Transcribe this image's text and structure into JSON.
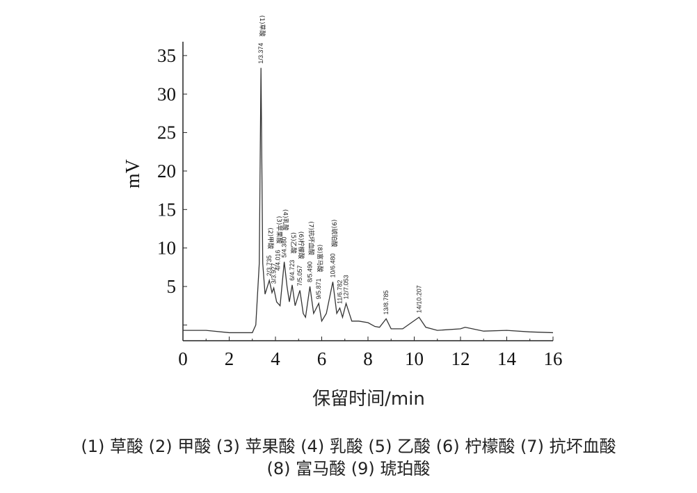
{
  "chart_data": {
    "type": "line",
    "title": "",
    "xlabel": "保留时间/min",
    "ylabel": "mV",
    "xlim": [
      0,
      16
    ],
    "ylim": [
      -1.5,
      37
    ],
    "xticks": [
      "0",
      "2",
      "4",
      "6",
      "8",
      "10",
      "12",
      "14",
      "16"
    ],
    "yticks": [
      "5",
      "10",
      "15",
      "20",
      "25",
      "30",
      "35"
    ],
    "series": [
      {
        "name": "chromatogram",
        "x": [
          0,
          1,
          2,
          3,
          3.15,
          3.3,
          3.374,
          3.45,
          3.55,
          3.735,
          3.85,
          3.927,
          4.05,
          4.2,
          4.38,
          4.5,
          4.6,
          4.723,
          4.85,
          5.057,
          5.2,
          5.3,
          5.49,
          5.65,
          5.871,
          6.0,
          6.2,
          6.48,
          6.65,
          6.782,
          6.9,
          7.053,
          7.3,
          7.6,
          8.0,
          8.3,
          8.5,
          8.785,
          9.0,
          9.5,
          10.207,
          10.5,
          11,
          12,
          12.2,
          13,
          14,
          15,
          16
        ],
        "y": [
          -0.7,
          -0.7,
          -1.0,
          -1.0,
          0,
          8,
          33.4,
          8,
          4,
          5.8,
          4.2,
          4.8,
          3,
          2.5,
          8.2,
          5,
          3,
          5.2,
          2.5,
          4.5,
          1.5,
          1.0,
          5.0,
          1.5,
          2.8,
          0.5,
          1.5,
          5.6,
          1.5,
          2.2,
          1.0,
          2.8,
          0.5,
          0.5,
          0.3,
          -0.2,
          -0.3,
          0.8,
          -0.5,
          -0.5,
          1.0,
          -0.3,
          -0.7,
          -0.5,
          -0.3,
          -0.8,
          -0.7,
          -0.9,
          -1.0
        ]
      }
    ],
    "peaks": [
      {
        "label": "1/3.374",
        "x": 3.374,
        "y": 33.4,
        "name": "(1)草酸"
      },
      {
        "label": "2/3.735",
        "x": 3.735,
        "y": 5.8,
        "name": "(2)甲酸"
      },
      {
        "label": "3/3.927",
        "x": 3.927,
        "y": 4.8,
        "name": ""
      },
      {
        "label": "4/4.016",
        "x": 4.1,
        "y": 6.5,
        "name": "(3)苹果酸"
      },
      {
        "label": "5/4.380",
        "x": 4.38,
        "y": 8.2,
        "name": "(4)乳酸"
      },
      {
        "label": "6/4.723",
        "x": 4.723,
        "y": 5.2,
        "name": "(5)乙酸"
      },
      {
        "label": "7/5.057",
        "x": 5.057,
        "y": 4.5,
        "name": "(6)柠檬酸"
      },
      {
        "label": "8/5.490",
        "x": 5.49,
        "y": 5.0,
        "name": "(7)抗坏血酸"
      },
      {
        "label": "9/5.871",
        "x": 5.871,
        "y": 2.8,
        "name": "(8)富马酸"
      },
      {
        "label": "10/6.480",
        "x": 6.48,
        "y": 5.6,
        "name": "(9)琥珀酸"
      },
      {
        "label": "11/6.782",
        "x": 6.782,
        "y": 2.2,
        "name": ""
      },
      {
        "label": "12/7.053",
        "x": 7.053,
        "y": 2.8,
        "name": ""
      },
      {
        "label": "13/8.785",
        "x": 8.785,
        "y": 0.8,
        "name": ""
      },
      {
        "label": "14/10.207",
        "x": 10.207,
        "y": 1.0,
        "name": ""
      }
    ],
    "grid": false,
    "legend": "none"
  },
  "caption": {
    "line1": "(1) 草酸 (2) 甲酸 (3) 苹果酸 (4) 乳酸 (5) 乙酸 (6) 柠檬酸 (7) 抗坏血酸",
    "line2": "(8) 富马酸 (9) 琥珀酸"
  }
}
